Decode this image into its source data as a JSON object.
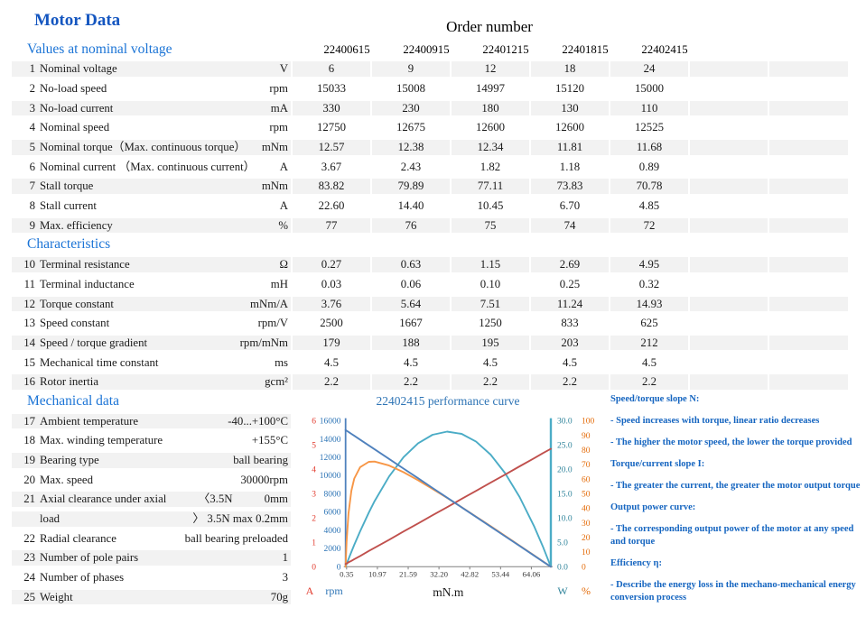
{
  "page": {
    "title": "Motor Data"
  },
  "table": {
    "order_title": "Order number",
    "columns": [
      "22400615",
      "22400915",
      "22401215",
      "22401815",
      "22402415"
    ],
    "sections": [
      {
        "title": "Values at nominal voltage",
        "show_columns": true,
        "rows": [
          {
            "num": "1",
            "label": "Nominal voltage",
            "unit": "V",
            "values": [
              "6",
              "9",
              "12",
              "18",
              "24"
            ],
            "striped": true
          },
          {
            "num": "2",
            "label": "No-load speed",
            "unit": "rpm",
            "values": [
              "15033",
              "15008",
              "14997",
              "15120",
              "15000"
            ],
            "striped": false
          },
          {
            "num": "3",
            "label": "No-load current",
            "unit": "mA",
            "values": [
              "330",
              "230",
              "180",
              "130",
              "110"
            ],
            "striped": true
          },
          {
            "num": "4",
            "label": "Nominal speed",
            "unit": "rpm",
            "values": [
              "12750",
              "12675",
              "12600",
              "12600",
              "12525"
            ],
            "striped": false
          },
          {
            "num": "5",
            "label": "Nominal torque（Max. continuous torque）",
            "unit": "mNm",
            "values": [
              "12.57",
              "12.38",
              "12.34",
              "11.81",
              "11.68"
            ],
            "striped": true
          },
          {
            "num": "6",
            "label": "Nominal current （Max. continuous current）",
            "unit": "A",
            "values": [
              "3.67",
              "2.43",
              "1.82",
              "1.18",
              "0.89"
            ],
            "striped": false
          },
          {
            "num": "7",
            "label": "Stall torque",
            "unit": "mNm",
            "values": [
              "83.82",
              "79.89",
              "77.11",
              "73.83",
              "70.78"
            ],
            "striped": true
          },
          {
            "num": "8",
            "label": "Stall current",
            "unit": "A",
            "values": [
              "22.60",
              "14.40",
              "10.45",
              "6.70",
              "4.85"
            ],
            "striped": false
          },
          {
            "num": "9",
            "label": "Max. efficiency",
            "unit": "%",
            "values": [
              "77",
              "76",
              "75",
              "74",
              "72"
            ],
            "striped": true
          }
        ]
      },
      {
        "title": "Characteristics",
        "show_columns": false,
        "rows": [
          {
            "num": "10",
            "label": "Terminal resistance",
            "unit": "Ω",
            "values": [
              "0.27",
              "0.63",
              "1.15",
              "2.69",
              "4.95"
            ],
            "striped": true
          },
          {
            "num": "11",
            "label": "Terminal inductance",
            "unit": "mH",
            "values": [
              "0.03",
              "0.06",
              "0.10",
              "0.25",
              "0.32"
            ],
            "striped": false
          },
          {
            "num": "12",
            "label": "Torque constant",
            "unit": "mNm/A",
            "values": [
              "3.76",
              "5.64",
              "7.51",
              "11.24",
              "14.93"
            ],
            "striped": true
          },
          {
            "num": "13",
            "label": "Speed constant",
            "unit": "rpm/V",
            "values": [
              "2500",
              "1667",
              "1250",
              "833",
              "625"
            ],
            "striped": false
          },
          {
            "num": "14",
            "label": "Speed / torque gradient",
            "unit": "rpm/mNm",
            "values": [
              "179",
              "188",
              "195",
              "203",
              "212"
            ],
            "striped": true
          },
          {
            "num": "15",
            "label": "Mechanical time constant",
            "unit": "ms",
            "values": [
              "4.5",
              "4.5",
              "4.5",
              "4.5",
              "4.5"
            ],
            "striped": false
          },
          {
            "num": "16",
            "label": "Rotor inertia",
            "unit": "gcm²",
            "values": [
              "2.2",
              "2.2",
              "2.2",
              "2.2",
              "2.2"
            ],
            "striped": true
          }
        ]
      },
      {
        "title": "Mechanical data",
        "show_columns": false,
        "rows": [
          {
            "num": "17",
            "label": "Ambient temperature",
            "value": "-40...+100°C",
            "striped": true
          },
          {
            "num": "18",
            "label": "Max. winding temperature",
            "value": "+155°C",
            "striped": false
          },
          {
            "num": "19",
            "label": "Bearing type",
            "value": "ball bearing",
            "striped": true
          },
          {
            "num": "20",
            "label": "Max. speed",
            "value": "30000rpm",
            "striped": false
          },
          {
            "num": "21",
            "label": "Axial clearance under axial",
            "mid": "〈3.5N",
            "value": "0mm",
            "striped": true
          },
          {
            "num": "",
            "label": "load",
            "value": "〉 3.5N  max 0.2mm",
            "striped": true
          },
          {
            "num": "22",
            "label": "Radial clearance",
            "value": "ball bearing  preloaded",
            "striped": false
          },
          {
            "num": "23",
            "label": "Number of pole pairs",
            "value": "1",
            "striped": true
          },
          {
            "num": "24",
            "label": "Number of phases",
            "value": "3",
            "striped": false
          },
          {
            "num": "25",
            "label": "Weight",
            "value": "70g",
            "striped": true
          }
        ]
      }
    ]
  },
  "chart_data": {
    "type": "line",
    "title": "22402415 performance curve",
    "xlabel": "mN.m",
    "x_range": [
      0,
      70.78
    ],
    "x_tick_values": [
      0.35,
      10.97,
      21.59,
      32.2,
      42.82,
      53.44,
      64.06
    ],
    "x_tick_labels": [
      "0.35",
      "10.97",
      "21.59",
      "32.20",
      "42.82",
      "53.44",
      "64.06"
    ],
    "axes": {
      "current": {
        "unit": "A",
        "range": [
          0,
          6
        ],
        "tick_values": [
          6,
          5,
          4,
          3,
          2,
          1,
          0
        ],
        "tick_labels": [
          "6",
          "5",
          "4",
          "3",
          "2",
          "1",
          "0"
        ],
        "color": "#e23b2e"
      },
      "speed": {
        "unit": "rpm",
        "range": [
          0,
          16000
        ],
        "tick_values": [
          16000,
          14000,
          12000,
          10000,
          8000,
          6000,
          4000,
          2000,
          0
        ],
        "tick_labels": [
          "16000",
          "14000",
          "12000",
          "10000",
          "8000",
          "6000",
          "4000",
          "2000",
          "0"
        ],
        "color": "#2e75b6"
      },
      "power": {
        "unit": "W",
        "range": [
          0,
          30
        ],
        "tick_values": [
          30,
          25,
          20,
          15,
          10,
          5,
          0
        ],
        "tick_labels": [
          "30.0",
          "25.0",
          "20.0",
          "15.0",
          "10.0",
          "5.0",
          "0.0"
        ],
        "color": "#31859c"
      },
      "efficiency": {
        "unit": "%",
        "range": [
          0,
          100
        ],
        "tick_values": [
          100,
          90,
          80,
          70,
          60,
          50,
          40,
          30,
          20,
          10,
          0
        ],
        "tick_labels": [
          "100",
          "90",
          "80",
          "70",
          "60",
          "50",
          "40",
          "30",
          "20",
          "10",
          "0"
        ],
        "color": "#e46c0a"
      }
    },
    "x": [
      0,
      0.35,
      1,
      2,
      3,
      5,
      8,
      10,
      15,
      20,
      25,
      30,
      35,
      40,
      45,
      50,
      55,
      60,
      65,
      68,
      70.78
    ],
    "series": [
      {
        "name": "power",
        "axis": "power",
        "color": "#4bacc6",
        "values": [
          0,
          0.55,
          1.55,
          3.05,
          4.51,
          7.3,
          11.14,
          13.49,
          18.57,
          22.54,
          25.4,
          27.15,
          27.79,
          27.32,
          25.74,
          23.06,
          19.26,
          14.35,
          8.34,
          4.19,
          0
        ]
      },
      {
        "name": "efficiency",
        "axis": "efficiency",
        "color": "#f79646",
        "values": [
          0,
          17.1,
          36.4,
          52.1,
          60.5,
          68.3,
          71.9,
          72.1,
          69.4,
          64.8,
          59.3,
          53.4,
          47.2,
          40.8,
          34.3,
          27.8,
          21.2,
          14.5,
          7.8,
          3.7,
          0
        ]
      },
      {
        "name": "current",
        "axis": "current",
        "color": "#c0504d",
        "values": [
          0.11,
          0.13,
          0.18,
          0.24,
          0.31,
          0.44,
          0.65,
          0.78,
          1.11,
          1.45,
          1.78,
          2.12,
          2.45,
          2.79,
          3.12,
          3.46,
          3.79,
          4.13,
          4.46,
          4.67,
          4.85
        ]
      },
      {
        "name": "speed",
        "axis": "speed",
        "color": "#4f81bd",
        "values": [
          15000,
          14926,
          14788,
          14576,
          14364,
          13940,
          13305,
          12881,
          11821,
          10761,
          9702,
          8642,
          7583,
          6523,
          5463,
          4404,
          3344,
          2284,
          1225,
          588,
          0
        ]
      }
    ],
    "legend": "none",
    "grid": false
  },
  "annotations": {
    "items": [
      {
        "style": "heading",
        "text": "Speed/torque slope N:"
      },
      {
        "style": "bullet",
        "text": "- Speed increases with torque, linear ratio decreases"
      },
      {
        "style": "bullet",
        "text": "- The higher the motor speed, the lower the torque provided"
      },
      {
        "style": "heading",
        "text": "Torque/current slope I:"
      },
      {
        "style": "bullet",
        "text": "- The greater the current, the greater the motor output torque"
      },
      {
        "style": "heading",
        "text": "Output power curve:"
      },
      {
        "style": "bullet",
        "text": "- The corresponding output power of the motor at any speed and torque"
      },
      {
        "style": "heading",
        "text": "Efficiency η:"
      },
      {
        "style": "bullet",
        "text": "- Describe the energy loss in the mechano-mechanical energy conversion process"
      }
    ]
  },
  "colors": {
    "title_blue": "#1456c0",
    "section_blue": "#1b74d6",
    "annotation_blue": "#1565c0",
    "chart_title_blue": "#2e74b5",
    "stripe_gray": "#f2f2f2"
  }
}
